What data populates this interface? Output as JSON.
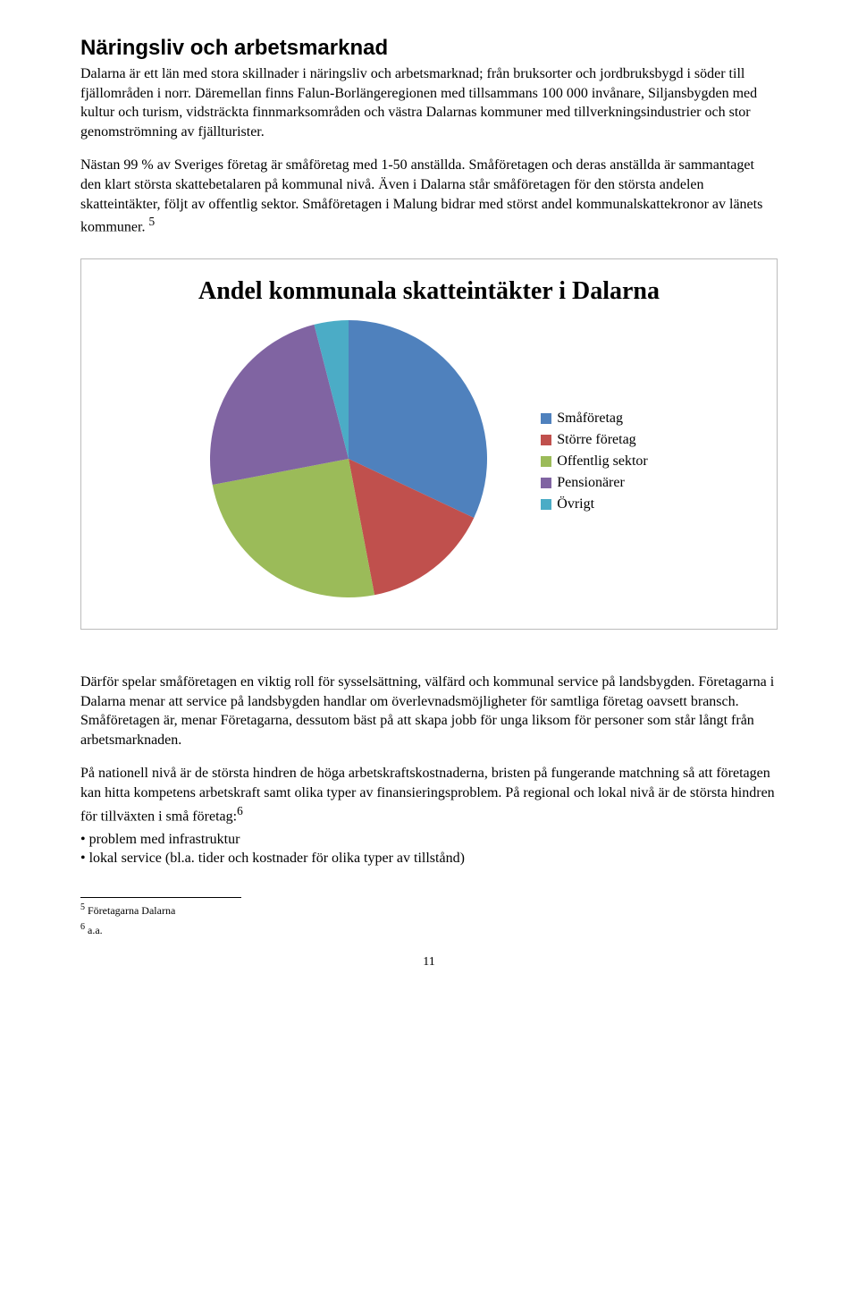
{
  "heading": "Näringsliv och arbetsmarknad",
  "para1": "Dalarna är ett län med stora skillnader i näringsliv och arbetsmarknad; från bruksorter och jordbruksbygd i söder till fjällområden i norr. Däremellan finns Falun-Borlängeregionen med tillsammans 100 000 invånare, Siljansbygden med kultur och turism, vidsträckta finnmarksområden och västra Dalarnas kommuner med tillverkningsindustrier och stor genomströmning av fjällturister.",
  "para2": "Nästan 99 % av Sveriges företag är småföretag med 1-50 anställda. Småföretagen och deras anställda är sammantaget den klart största skattebetalaren på kommunal nivå. Även i Dalarna står småföretagen för den största andelen skatteintäkter, följt av offentlig sektor. Småföretagen i Malung bidrar med störst andel kommunalskattekronor av länets kommuner. ",
  "sup2": "5",
  "chart": {
    "title": "Andel kommunala skatteintäkter i Dalarna",
    "slices": [
      {
        "label": "Småföretag",
        "value": 32,
        "color": "#4f81bd"
      },
      {
        "label": "Större företag",
        "value": 15,
        "color": "#c0504d"
      },
      {
        "label": "Offentlig sektor",
        "value": 25,
        "color": "#9bbb59"
      },
      {
        "label": "Pensionärer",
        "value": 24,
        "color": "#8064a2"
      },
      {
        "label": "Övrigt",
        "value": 4,
        "color": "#4bacc6"
      }
    ],
    "diameter": 310,
    "bg": "#ffffff",
    "border": "#bbbbbb",
    "legend_fontsize": 16,
    "swatch_size": 12
  },
  "para3": "Därför spelar småföretagen en viktig roll för sysselsättning, välfärd och kommunal service på landsbygden. Företagarna i Dalarna menar att service på landsbygden handlar om överlevnadsmöjligheter för samtliga företag oavsett bransch. Småföretagen är, menar Företagarna, dessutom bäst på att skapa jobb för unga liksom för personer som står långt från arbetsmarknaden.",
  "para4_a": "På nationell nivå är de största hindren de höga arbetskraftskostnaderna, bristen på fungerande matchning så att företagen kan hitta kompetens arbetskraft samt olika typer av finansieringsproblem. På regional och lokal nivå är de största hindren för tillväxten i små företag:",
  "sup4": "6",
  "bullets": [
    "• problem med infrastruktur",
    "• lokal service (bl.a. tider och kostnader för olika typer av tillstånd)"
  ],
  "footnotes": [
    {
      "num": "5",
      "text": "Företagarna Dalarna"
    },
    {
      "num": "6",
      "text": "a.a."
    }
  ],
  "pagenum": "11"
}
